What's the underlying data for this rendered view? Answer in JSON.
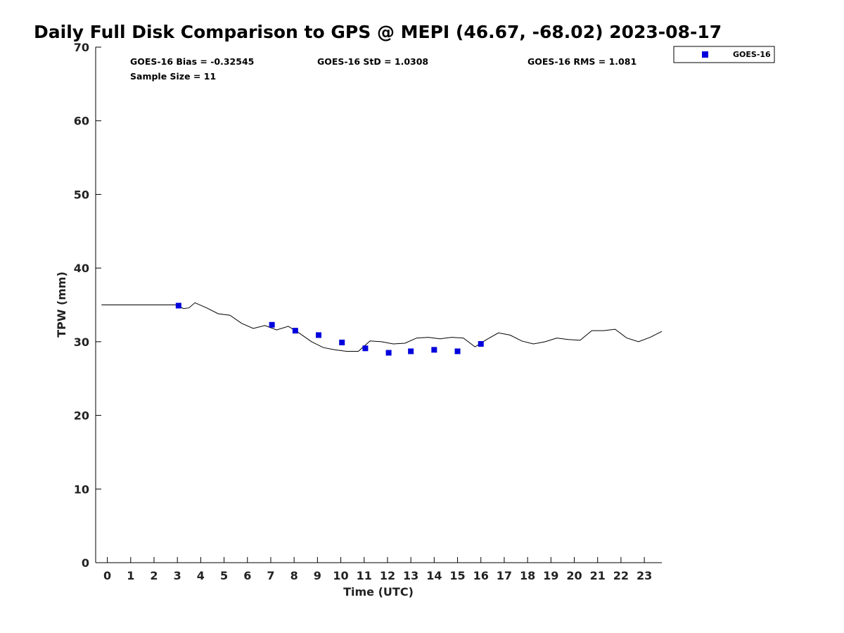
{
  "chart_data": {
    "type": "scatter",
    "title": "Daily Full Disk Comparison to GPS @ MEPI (46.67, -68.02) 2023-08-17",
    "xlabel": "Time (UTC)",
    "ylabel": "TPW (mm)",
    "xlim": [
      -0.5,
      23.75
    ],
    "ylim": [
      0,
      70
    ],
    "x_ticks": [
      0,
      1,
      2,
      3,
      4,
      5,
      6,
      7,
      8,
      9,
      10,
      11,
      12,
      13,
      14,
      15,
      16,
      17,
      18,
      19,
      20,
      21,
      22,
      23
    ],
    "y_ticks": [
      0,
      10,
      20,
      30,
      40,
      50,
      60,
      70
    ],
    "stats": {
      "bias": "GOES-16 Bias = -0.32545",
      "std": "GOES-16 StD = 1.0308",
      "rms": "GOES-16 RMS = 1.081",
      "sample": "Sample Size = 11"
    },
    "legend": {
      "position": "top-right",
      "entries": [
        "GOES-16"
      ]
    },
    "series": [
      {
        "name": "GOES-16",
        "kind": "markers",
        "color": "#0000dd",
        "x": [
          3.05,
          7.05,
          8.05,
          9.05,
          10.05,
          11.05,
          12.05,
          13.0,
          14.0,
          15.0,
          16.0
        ],
        "y": [
          34.9,
          32.3,
          31.5,
          30.9,
          29.9,
          29.1,
          28.5,
          28.7,
          28.9,
          28.7,
          29.7
        ]
      },
      {
        "kind": "line",
        "color": "#000000",
        "x": [
          -0.25,
          0.0,
          0.5,
          1.0,
          1.5,
          2.0,
          2.5,
          3.0,
          3.25,
          3.5,
          3.75,
          4.25,
          4.75,
          5.25,
          5.75,
          6.25,
          6.75,
          7.25,
          7.75,
          8.25,
          8.75,
          9.25,
          9.75,
          10.25,
          10.75,
          11.25,
          11.75,
          12.25,
          12.75,
          13.25,
          13.75,
          14.25,
          14.75,
          15.25,
          15.75,
          16.25,
          16.75,
          17.25,
          17.75,
          18.25,
          18.75,
          19.25,
          19.75,
          20.25,
          20.75,
          21.25,
          21.75,
          22.25,
          22.75,
          23.25,
          23.75
        ],
        "y": [
          35.0,
          35.0,
          35.0,
          35.0,
          35.0,
          35.0,
          35.0,
          35.0,
          34.5,
          34.6,
          35.3,
          34.6,
          33.8,
          33.6,
          32.5,
          31.8,
          32.2,
          31.6,
          32.1,
          31.1,
          30.0,
          29.2,
          28.9,
          28.7,
          28.7,
          30.1,
          30.0,
          29.7,
          29.8,
          30.5,
          30.6,
          30.4,
          30.6,
          30.5,
          29.3,
          30.3,
          31.2,
          30.9,
          30.1,
          29.7,
          30.0,
          30.5,
          30.3,
          30.2,
          31.5,
          31.5,
          31.7,
          30.5,
          30.0,
          30.6,
          31.4
        ]
      }
    ]
  }
}
